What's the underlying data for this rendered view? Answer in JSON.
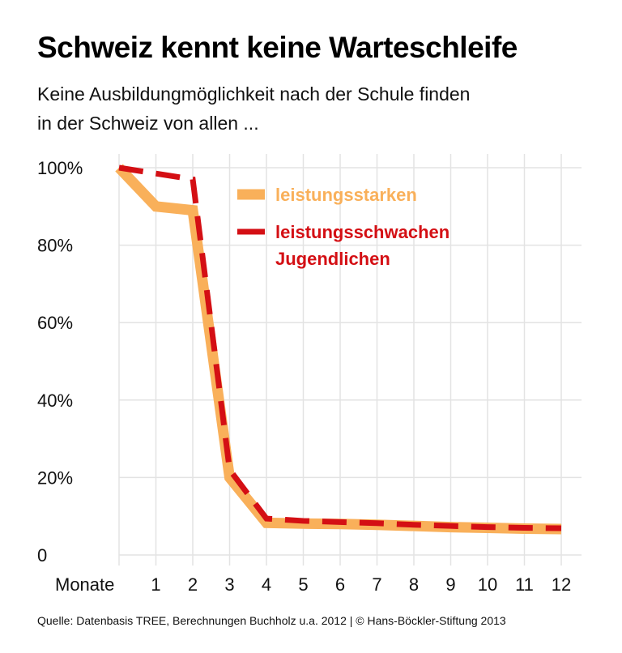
{
  "title": "Schweiz kennt keine Warteschleife",
  "subtitle_line1": "Keine Ausbildungmöglichkeit nach der Schule finden",
  "subtitle_line2": "in der Schweiz von allen ...",
  "source": "Quelle: Datenbasis TREE, Berechnungen Buchholz u.a. 2012 | © Hans-Böckler-Stiftung 2013",
  "chart_data": {
    "type": "line",
    "title": "Schweiz kennt keine Warteschleife",
    "xlabel": "Monate",
    "ylabel": "",
    "x": [
      0,
      1,
      2,
      3,
      4,
      5,
      6,
      7,
      8,
      9,
      10,
      11,
      12
    ],
    "x_tick_labels": [
      "Monate",
      "1",
      "2",
      "3",
      "4",
      "5",
      "6",
      "7",
      "8",
      "9",
      "10",
      "11",
      "12"
    ],
    "y_ticks": [
      0,
      20,
      40,
      60,
      80,
      100
    ],
    "y_tick_labels": [
      "0",
      "20%",
      "40%",
      "60%",
      "80%",
      "100%"
    ],
    "ylim": [
      0,
      100
    ],
    "xlim": [
      0,
      12
    ],
    "grid": true,
    "legend_placement": "top-right",
    "series": [
      {
        "name": "leistungsstarken",
        "style": "solid-thick",
        "color": "#f9b05a",
        "values": [
          100,
          90,
          89,
          20,
          8.3,
          8.1,
          8,
          7.8,
          7.5,
          7.2,
          7,
          6.8,
          6.7
        ]
      },
      {
        "name": "leistungsschwachen Jugendlichen",
        "style": "dashed",
        "color": "#d40f14",
        "values": [
          100,
          98.5,
          97,
          22,
          9.4,
          8.8,
          8.5,
          8.2,
          7.8,
          7.5,
          7.2,
          7,
          6.9
        ]
      }
    ],
    "legend": [
      "leistungsstarken",
      "leistungsschwachen",
      "Jugendlichen"
    ]
  }
}
